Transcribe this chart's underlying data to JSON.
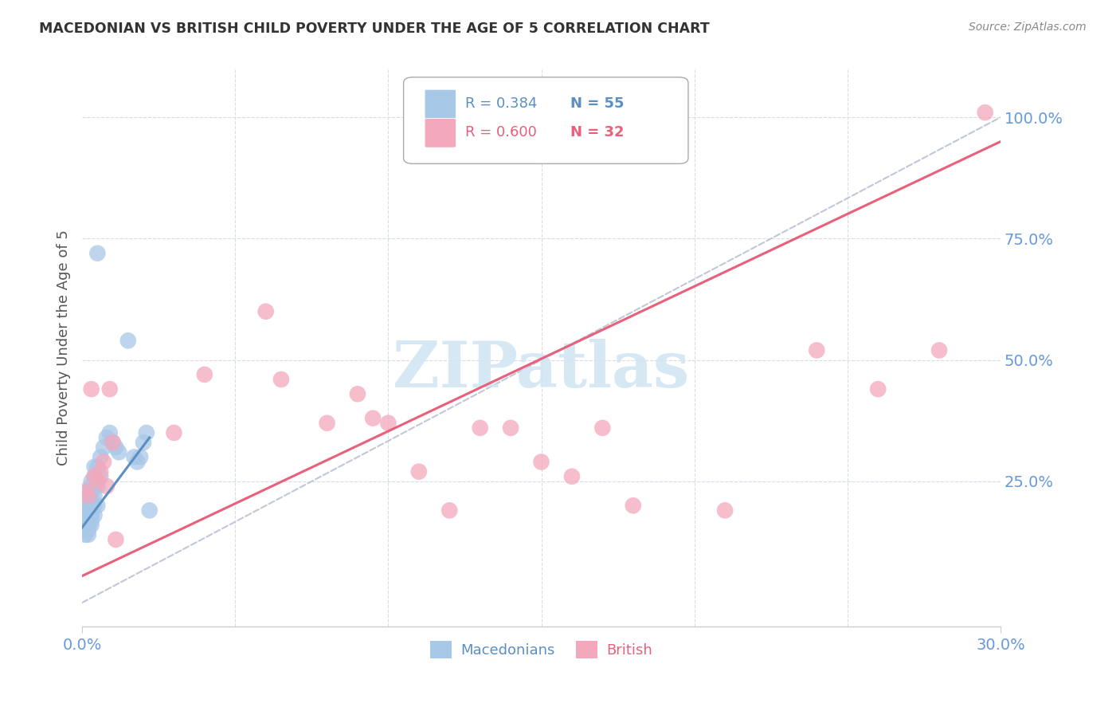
{
  "title": "MACEDONIAN VS BRITISH CHILD POVERTY UNDER THE AGE OF 5 CORRELATION CHART",
  "source": "Source: ZipAtlas.com",
  "ylabel": "Child Poverty Under the Age of 5",
  "ytick_labels": [
    "25.0%",
    "50.0%",
    "75.0%",
    "100.0%"
  ],
  "ytick_values": [
    0.25,
    0.5,
    0.75,
    1.0
  ],
  "xmin": 0.0,
  "xmax": 0.3,
  "ymin": -0.05,
  "ymax": 1.1,
  "macedonian_color": "#A8C8E8",
  "british_color": "#F4A8BC",
  "macedonian_line_color": "#5B8FC4",
  "british_line_color": "#E8607A",
  "ref_line_color": "#C0C8D8",
  "background_color": "#FFFFFF",
  "grid_color": "#D8DCE8",
  "axis_label_color": "#6699DD",
  "title_color": "#333333",
  "source_color": "#888888",
  "watermark_color": "#D0E4F4",
  "macedonians_x": [
    0.001,
    0.001,
    0.001,
    0.001,
    0.001,
    0.001,
    0.001,
    0.001,
    0.001,
    0.001,
    0.002,
    0.002,
    0.002,
    0.002,
    0.002,
    0.002,
    0.002,
    0.002,
    0.002,
    0.002,
    0.003,
    0.003,
    0.003,
    0.003,
    0.003,
    0.003,
    0.003,
    0.003,
    0.003,
    0.003,
    0.004,
    0.004,
    0.004,
    0.004,
    0.004,
    0.004,
    0.005,
    0.005,
    0.005,
    0.005,
    0.006,
    0.006,
    0.007,
    0.008,
    0.009,
    0.01,
    0.011,
    0.012,
    0.015,
    0.017,
    0.018,
    0.019,
    0.02,
    0.021,
    0.022
  ],
  "macedonians_y": [
    0.14,
    0.15,
    0.15,
    0.16,
    0.17,
    0.17,
    0.18,
    0.18,
    0.19,
    0.2,
    0.14,
    0.15,
    0.16,
    0.17,
    0.18,
    0.19,
    0.2,
    0.21,
    0.22,
    0.23,
    0.16,
    0.17,
    0.18,
    0.19,
    0.2,
    0.21,
    0.22,
    0.23,
    0.24,
    0.25,
    0.18,
    0.2,
    0.22,
    0.24,
    0.26,
    0.28,
    0.2,
    0.24,
    0.28,
    0.72,
    0.26,
    0.3,
    0.32,
    0.34,
    0.35,
    0.33,
    0.32,
    0.31,
    0.54,
    0.3,
    0.29,
    0.3,
    0.33,
    0.35,
    0.19
  ],
  "british_x": [
    0.001,
    0.002,
    0.003,
    0.004,
    0.005,
    0.006,
    0.007,
    0.008,
    0.009,
    0.01,
    0.011,
    0.03,
    0.04,
    0.06,
    0.065,
    0.08,
    0.09,
    0.095,
    0.1,
    0.11,
    0.12,
    0.13,
    0.14,
    0.15,
    0.16,
    0.17,
    0.18,
    0.21,
    0.24,
    0.26,
    0.28,
    0.295
  ],
  "british_y": [
    0.23,
    0.22,
    0.44,
    0.26,
    0.25,
    0.27,
    0.29,
    0.24,
    0.44,
    0.33,
    0.13,
    0.35,
    0.47,
    0.6,
    0.46,
    0.37,
    0.43,
    0.38,
    0.37,
    0.27,
    0.19,
    0.36,
    0.36,
    0.29,
    0.26,
    0.36,
    0.2,
    0.19,
    0.52,
    0.44,
    0.52,
    1.01
  ],
  "mac_line_x": [
    0.0,
    0.022
  ],
  "mac_line_y": [
    0.155,
    0.34
  ],
  "brit_line_x": [
    0.0,
    0.3
  ],
  "brit_line_y": [
    0.055,
    0.95
  ],
  "ref_line_x": [
    0.0,
    0.3
  ],
  "ref_line_y": [
    0.0,
    1.0
  ],
  "watermark": "ZIPatlas"
}
